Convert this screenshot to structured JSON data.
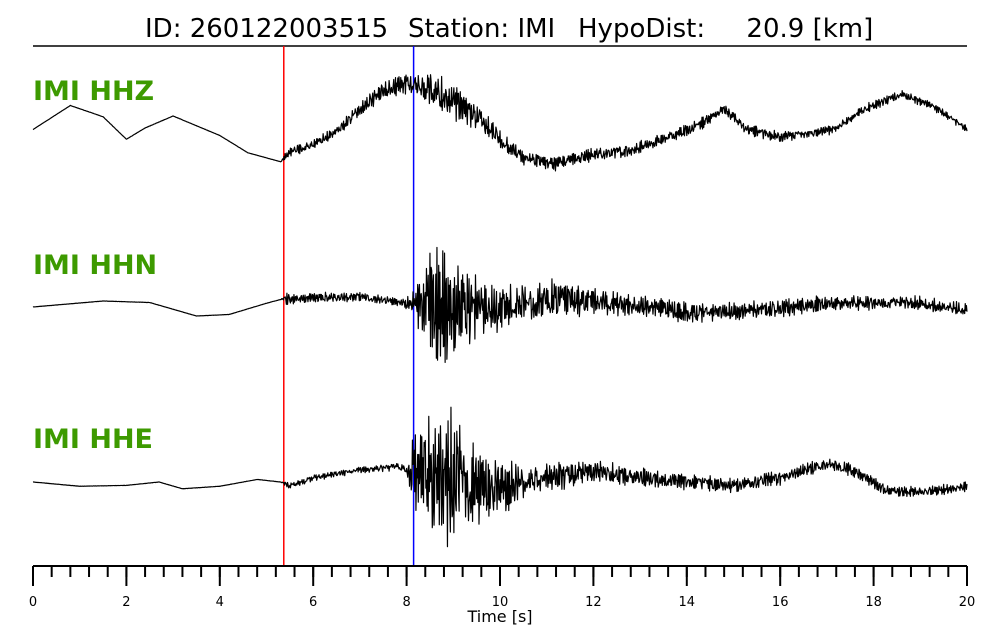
{
  "title": {
    "id": "ID: 260122003515",
    "station": "Station: IMI",
    "hypodist": "HypoDist:     20.9 [km]"
  },
  "colors": {
    "label": "#3d9a00",
    "p_pick": "#ff0000",
    "s_pick": "#0000ff",
    "trace": "#000000"
  },
  "chart_data": {
    "type": "line",
    "xlabel": "Time [s]",
    "xlim": [
      0,
      20
    ],
    "x_major_ticks": [
      0,
      2,
      4,
      6,
      8,
      10,
      12,
      14,
      16,
      18,
      20
    ],
    "x_tick_labels": [
      "0",
      "2",
      "4",
      "6",
      "8",
      "10",
      "12",
      "14",
      "16",
      "18",
      "20"
    ],
    "x_minor_tick_step": 0.4,
    "picks": [
      {
        "phase": "P",
        "time": 5.37,
        "color": "#ff0000"
      },
      {
        "phase": "S",
        "time": 8.15,
        "color": "#0000ff"
      }
    ],
    "series": [
      {
        "name": "IMI HHZ",
        "envelope": [
          [
            0.0,
            0.002
          ],
          [
            5.3,
            0.002
          ],
          [
            5.4,
            0.06
          ],
          [
            6.0,
            0.07
          ],
          [
            7.0,
            0.09
          ],
          [
            7.5,
            0.12
          ],
          [
            8.2,
            0.16
          ],
          [
            8.6,
            0.28
          ],
          [
            9.2,
            0.26
          ],
          [
            9.8,
            0.15
          ],
          [
            10.5,
            0.11
          ],
          [
            11.5,
            0.1
          ],
          [
            13.0,
            0.09
          ],
          [
            15.0,
            0.08
          ],
          [
            17.0,
            0.07
          ],
          [
            19.0,
            0.06
          ],
          [
            20.0,
            0.05
          ]
        ],
        "trend": [
          [
            0.0,
            -0.02
          ],
          [
            0.8,
            0.3
          ],
          [
            1.5,
            0.15
          ],
          [
            2.0,
            -0.15
          ],
          [
            2.4,
            0.0
          ],
          [
            3.0,
            0.16
          ],
          [
            4.0,
            -0.1
          ],
          [
            4.6,
            -0.33
          ],
          [
            5.3,
            -0.45
          ],
          [
            5.5,
            -0.32
          ],
          [
            6.0,
            -0.22
          ],
          [
            6.5,
            -0.05
          ],
          [
            7.0,
            0.25
          ],
          [
            7.5,
            0.5
          ],
          [
            8.0,
            0.6
          ],
          [
            8.5,
            0.52
          ],
          [
            9.0,
            0.35
          ],
          [
            9.5,
            0.15
          ],
          [
            10.0,
            -0.15
          ],
          [
            10.5,
            -0.4
          ],
          [
            11.2,
            -0.48
          ],
          [
            12.0,
            -0.35
          ],
          [
            12.8,
            -0.3
          ],
          [
            13.5,
            -0.15
          ],
          [
            14.2,
            0.02
          ],
          [
            14.8,
            0.25
          ],
          [
            15.3,
            -0.02
          ],
          [
            16.0,
            -0.12
          ],
          [
            16.6,
            -0.08
          ],
          [
            17.2,
            0.0
          ],
          [
            17.8,
            0.25
          ],
          [
            18.6,
            0.45
          ],
          [
            19.3,
            0.28
          ],
          [
            20.0,
            -0.02
          ]
        ]
      },
      {
        "name": "IMI HHN",
        "envelope": [
          [
            0.0,
            0.002
          ],
          [
            5.3,
            0.002
          ],
          [
            5.4,
            0.08
          ],
          [
            6.5,
            0.07
          ],
          [
            7.8,
            0.06
          ],
          [
            8.1,
            0.1
          ],
          [
            8.5,
            0.78
          ],
          [
            8.9,
            0.82
          ],
          [
            9.3,
            0.55
          ],
          [
            9.7,
            0.4
          ],
          [
            10.3,
            0.28
          ],
          [
            11.0,
            0.3
          ],
          [
            11.8,
            0.22
          ],
          [
            13.0,
            0.15
          ],
          [
            14.0,
            0.14
          ],
          [
            15.5,
            0.13
          ],
          [
            17.0,
            0.11
          ],
          [
            20.0,
            0.09
          ]
        ],
        "trend": [
          [
            0.0,
            0.0
          ],
          [
            1.5,
            0.08
          ],
          [
            2.5,
            0.06
          ],
          [
            3.5,
            -0.12
          ],
          [
            4.2,
            -0.1
          ],
          [
            5.0,
            0.05
          ],
          [
            5.3,
            0.1
          ],
          [
            6.0,
            0.12
          ],
          [
            7.0,
            0.14
          ],
          [
            8.0,
            0.05
          ],
          [
            9.0,
            0.0
          ],
          [
            10.0,
            0.0
          ],
          [
            11.0,
            0.1
          ],
          [
            12.0,
            0.08
          ],
          [
            13.0,
            0.02
          ],
          [
            14.0,
            -0.08
          ],
          [
            15.0,
            -0.06
          ],
          [
            16.0,
            -0.02
          ],
          [
            17.0,
            0.05
          ],
          [
            18.0,
            0.06
          ],
          [
            19.0,
            0.05
          ],
          [
            20.0,
            -0.04
          ]
        ]
      },
      {
        "name": "IMI HHE",
        "envelope": [
          [
            0.0,
            0.002
          ],
          [
            5.3,
            0.002
          ],
          [
            5.4,
            0.04
          ],
          [
            6.5,
            0.04
          ],
          [
            7.5,
            0.05
          ],
          [
            8.0,
            0.06
          ],
          [
            8.2,
            0.6
          ],
          [
            8.6,
            0.8
          ],
          [
            9.0,
            0.88
          ],
          [
            9.4,
            0.55
          ],
          [
            9.8,
            0.42
          ],
          [
            10.5,
            0.22
          ],
          [
            11.5,
            0.16
          ],
          [
            13.0,
            0.11
          ],
          [
            15.0,
            0.09
          ],
          [
            17.0,
            0.08
          ],
          [
            20.0,
            0.06
          ]
        ],
        "trend": [
          [
            0.0,
            0.0
          ],
          [
            1.0,
            -0.05
          ],
          [
            2.0,
            -0.04
          ],
          [
            2.7,
            0.0
          ],
          [
            3.2,
            -0.08
          ],
          [
            4.0,
            -0.05
          ],
          [
            4.8,
            0.03
          ],
          [
            5.3,
            0.0
          ],
          [
            5.5,
            -0.05
          ],
          [
            6.0,
            0.05
          ],
          [
            7.0,
            0.14
          ],
          [
            7.8,
            0.18
          ],
          [
            8.2,
            0.1
          ],
          [
            9.0,
            0.0
          ],
          [
            10.0,
            -0.08
          ],
          [
            11.0,
            0.05
          ],
          [
            12.0,
            0.12
          ],
          [
            13.0,
            0.06
          ],
          [
            14.0,
            0.0
          ],
          [
            15.0,
            -0.04
          ],
          [
            16.0,
            0.05
          ],
          [
            17.0,
            0.22
          ],
          [
            17.5,
            0.15
          ],
          [
            18.3,
            -0.1
          ],
          [
            19.0,
            -0.12
          ],
          [
            20.0,
            -0.05
          ]
        ]
      }
    ]
  }
}
